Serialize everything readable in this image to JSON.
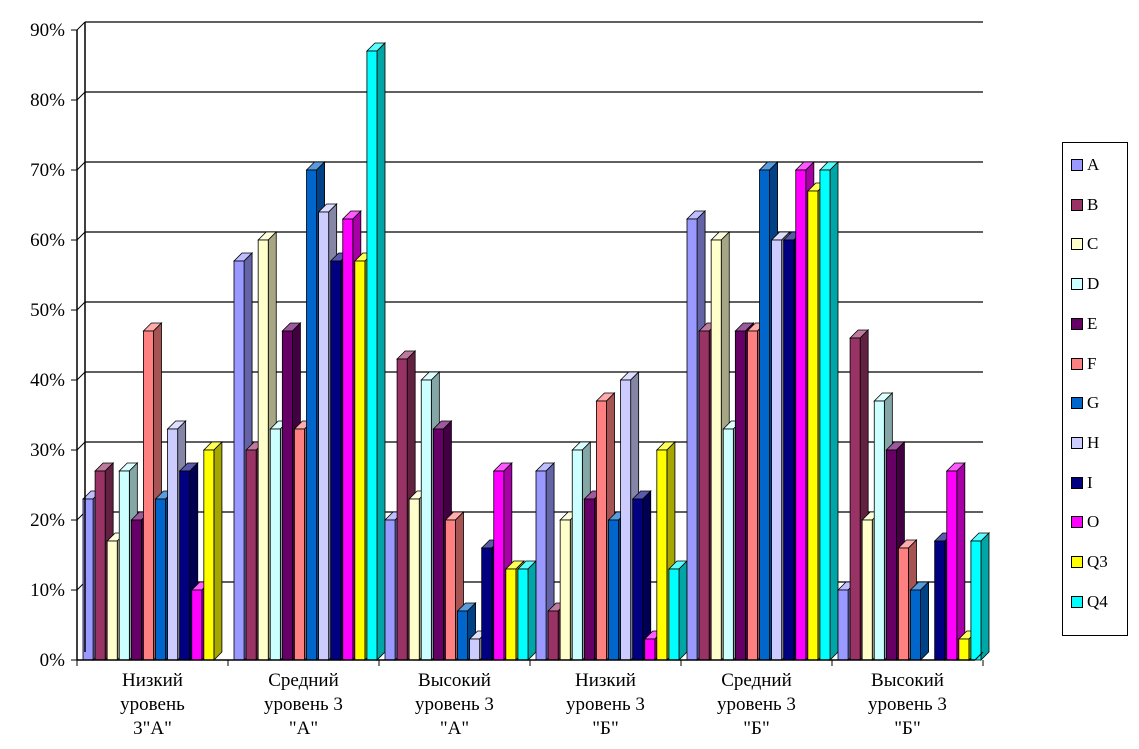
{
  "chart_data": {
    "type": "bar",
    "title": "",
    "xlabel": "",
    "ylabel": "",
    "ylim": [
      0,
      90
    ],
    "y_ticks": [
      "0%",
      "10%",
      "20%",
      "30%",
      "40%",
      "50%",
      "60%",
      "70%",
      "80%",
      "90%"
    ],
    "grid": true,
    "legend_position": "right",
    "categories": [
      [
        "Низкий",
        "уровень",
        "3\"А\""
      ],
      [
        "Средний",
        "уровень 3",
        "\"А\""
      ],
      [
        "Высокий",
        "уровень 3",
        "\"А\""
      ],
      [
        "Низкий",
        "уровень 3",
        "\"Б\""
      ],
      [
        "Средний",
        "уровень 3",
        "\"Б\""
      ],
      [
        "Высокий",
        "уровень 3",
        "\"Б\""
      ]
    ],
    "series": [
      {
        "name": "A",
        "color": "#9999ff",
        "values": [
          23,
          57,
          20,
          27,
          63,
          10
        ]
      },
      {
        "name": "B",
        "color": "#993366",
        "values": [
          27,
          30,
          43,
          7,
          47,
          46
        ]
      },
      {
        "name": "C",
        "color": "#ffffcc",
        "values": [
          17,
          60,
          23,
          20,
          60,
          20
        ]
      },
      {
        "name": "D",
        "color": "#ccffff",
        "values": [
          27,
          33,
          40,
          30,
          33,
          37
        ]
      },
      {
        "name": "E",
        "color": "#660066",
        "values": [
          20,
          47,
          33,
          23,
          47,
          30
        ]
      },
      {
        "name": "F",
        "color": "#ff8080",
        "values": [
          47,
          33,
          20,
          37,
          47,
          16
        ]
      },
      {
        "name": "G",
        "color": "#0066cc",
        "values": [
          23,
          70,
          7,
          20,
          70,
          10
        ]
      },
      {
        "name": "H",
        "color": "#ccccff",
        "values": [
          33,
          64,
          3,
          40,
          60,
          0
        ]
      },
      {
        "name": "I",
        "color": "#000080",
        "values": [
          27,
          57,
          16,
          23,
          60,
          17
        ]
      },
      {
        "name": "O",
        "color": "#ff00ff",
        "values": [
          10,
          63,
          27,
          3,
          70,
          27
        ]
      },
      {
        "name": "Q3",
        "color": "#ffff00",
        "values": [
          30,
          57,
          13,
          30,
          67,
          3
        ]
      },
      {
        "name": "Q4",
        "color": "#00ffff",
        "values": [
          0,
          87,
          13,
          13,
          70,
          17
        ]
      }
    ]
  }
}
